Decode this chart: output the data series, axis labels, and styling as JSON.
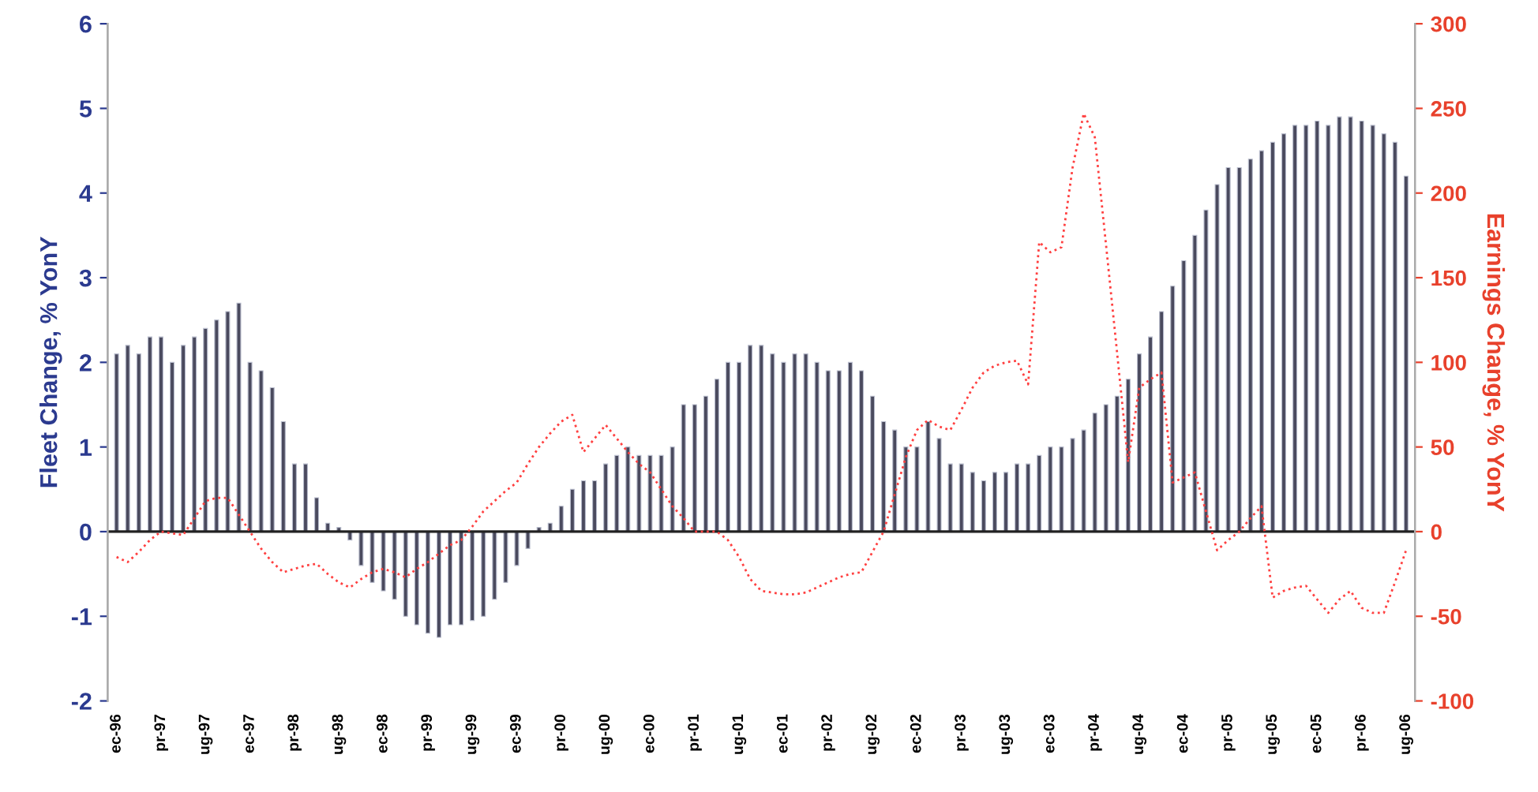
{
  "chart_data": {
    "type": "bar",
    "ylabel": "Fleet Change, % YonY",
    "y2label": "Earnings Change, % YonY",
    "categories": [
      "ec-96",
      null,
      null,
      null,
      "pr-97",
      null,
      null,
      null,
      "ug-97",
      null,
      null,
      null,
      "ec-97",
      null,
      null,
      null,
      "pr-98",
      null,
      null,
      null,
      "ug-98",
      null,
      null,
      null,
      "ec-98",
      null,
      null,
      null,
      "pr-99",
      null,
      null,
      null,
      "ug-99",
      null,
      null,
      null,
      "ec-99",
      null,
      null,
      null,
      "pr-00",
      null,
      null,
      null,
      "ug-00",
      null,
      null,
      null,
      "ec-00",
      null,
      null,
      null,
      "pr-01",
      null,
      null,
      null,
      "ug-01",
      null,
      null,
      null,
      "ec-01",
      null,
      null,
      null,
      "pr-02",
      null,
      null,
      null,
      "ug-02",
      null,
      null,
      null,
      "ec-02",
      null,
      null,
      null,
      "pr-03",
      null,
      null,
      null,
      "ug-03",
      null,
      null,
      null,
      "ec-03",
      null,
      null,
      null,
      "pr-04",
      null,
      null,
      null,
      "ug-04",
      null,
      null,
      null,
      "ec-04",
      null,
      null,
      null,
      "pr-05",
      null,
      null,
      null,
      "ug-05",
      null,
      null,
      null,
      "ec-05",
      null,
      null,
      null,
      "pr-06",
      null,
      null,
      null,
      "ug-06"
    ],
    "series": [
      {
        "color": "#4a4a5e",
        "values": [
          2.1,
          2.2,
          2.1,
          2.3,
          2.3,
          2.0,
          2.2,
          2.3,
          2.4,
          2.5,
          2.6,
          2.7,
          2.0,
          1.9,
          1.7,
          1.3,
          0.8,
          0.8,
          0.4,
          0.1,
          0.05,
          -0.1,
          -0.4,
          -0.6,
          -0.7,
          -0.8,
          -1.0,
          -1.1,
          -1.2,
          -1.25,
          -1.1,
          -1.1,
          -1.05,
          -1.0,
          -0.8,
          -0.6,
          -0.4,
          -0.2,
          0.05,
          0.1,
          0.3,
          0.5,
          0.6,
          0.6,
          0.8,
          0.9,
          1.0,
          0.9,
          0.9,
          0.9,
          1.0,
          1.5,
          1.5,
          1.6,
          1.8,
          2.0,
          2.0,
          2.2,
          2.2,
          2.1,
          2.0,
          2.1,
          2.1,
          2.0,
          1.9,
          1.9,
          2.0,
          1.9,
          1.6,
          1.3,
          1.2,
          1.0,
          1.0,
          1.3,
          1.1,
          0.8,
          0.8,
          0.7,
          0.6,
          0.7,
          0.7,
          0.8,
          0.8,
          0.9,
          1.0,
          1.0,
          1.1,
          1.2,
          1.4,
          1.5,
          1.6,
          1.8,
          2.1,
          2.3,
          2.6,
          2.9,
          3.2,
          3.5,
          3.8,
          4.1,
          4.3,
          4.3,
          4.4,
          4.5,
          4.6,
          4.7,
          4.8,
          4.8,
          4.85,
          4.8,
          4.9,
          4.9,
          4.85,
          4.8,
          4.7,
          4.6,
          4.2
        ]
      },
      {
        "type": "line",
        "axis": "y2",
        "color": "#ff4040",
        "values": [
          -15,
          -18,
          -12,
          -5,
          0,
          -1,
          -2,
          8,
          18,
          20,
          20,
          10,
          0,
          -10,
          -18,
          -24,
          -22,
          -20,
          -19,
          -25,
          -30,
          -33,
          -28,
          -24,
          -22,
          -24,
          -27,
          -22,
          -18,
          -13,
          -8,
          -5,
          3,
          12,
          18,
          24,
          29,
          40,
          50,
          58,
          65,
          69,
          47,
          55,
          63,
          55,
          47,
          40,
          35,
          25,
          15,
          8,
          0,
          0,
          0,
          -5,
          -15,
          -28,
          -35,
          -36,
          -37,
          -37,
          -36,
          -33,
          -30,
          -27,
          -25,
          -24,
          -12,
          0,
          22,
          44,
          60,
          66,
          62,
          60,
          72,
          85,
          94,
          98,
          100,
          101,
          87,
          171,
          165,
          168,
          215,
          247,
          233,
          170,
          106,
          41,
          85,
          90,
          94,
          29,
          32,
          35,
          12,
          -11,
          -5,
          0,
          8,
          15,
          -39,
          -35,
          -33,
          -32,
          -40,
          -48,
          -40,
          -35,
          -45,
          -48,
          -48,
          -30,
          -11
        ]
      }
    ],
    "ylim": [
      -2,
      6
    ],
    "yticks": [
      -2,
      -1,
      0,
      1,
      2,
      3,
      4,
      5,
      6
    ],
    "y2lim": [
      -100,
      300
    ],
    "y2ticks": [
      -100,
      -50,
      0,
      50,
      100,
      150,
      200,
      250,
      300
    ],
    "line_style": "dotted",
    "marker": "none"
  }
}
